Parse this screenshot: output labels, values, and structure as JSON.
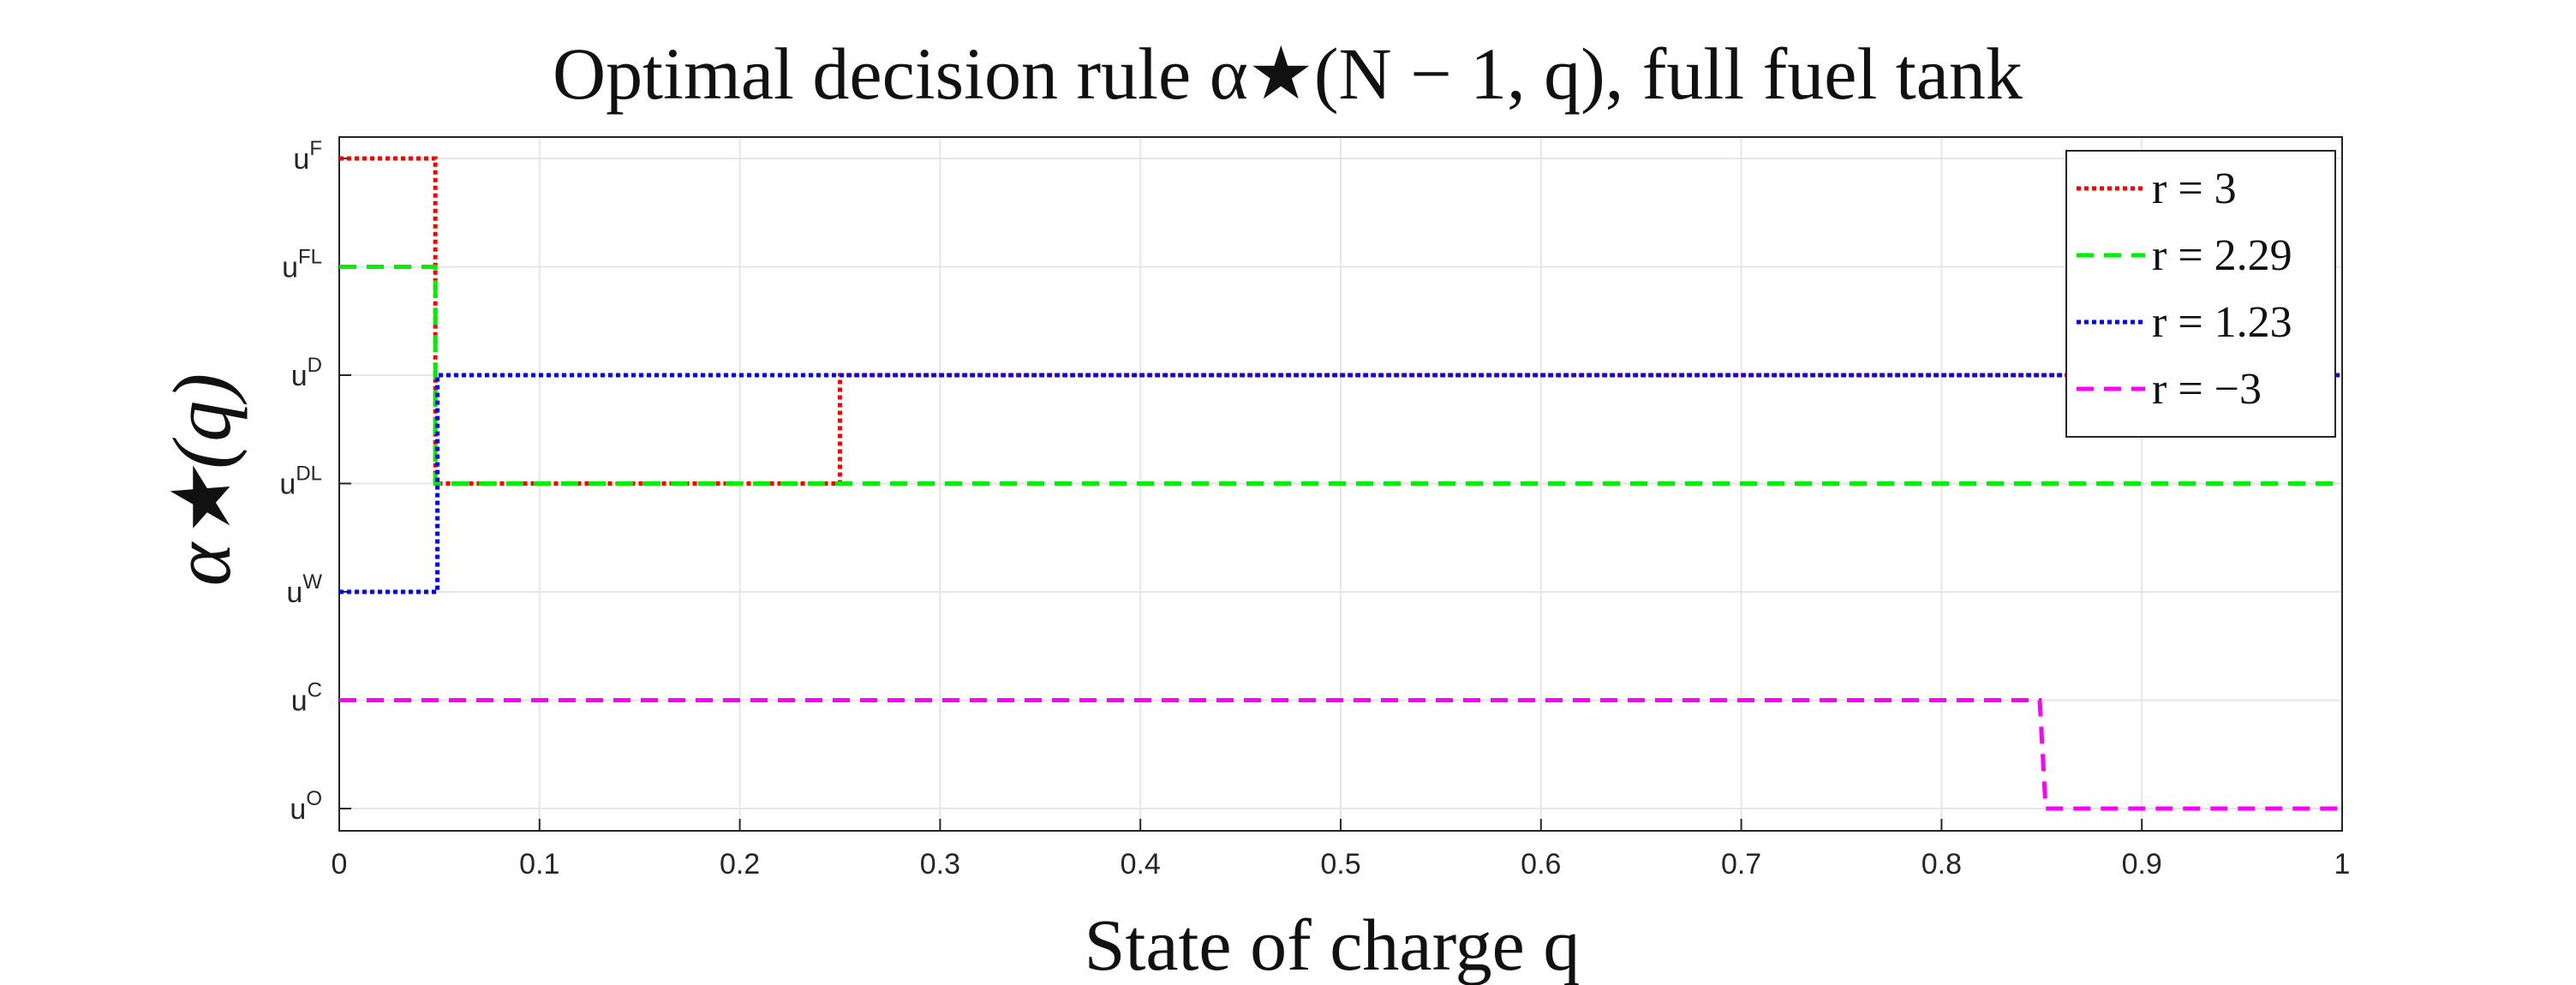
{
  "chart_data": {
    "type": "line",
    "title": "Optimal decision rule α★(N − 1, q), full fuel tank",
    "xlabel": "State of charge  q",
    "ylabel": "α★(q)",
    "xlim": [
      0,
      1
    ],
    "x_ticks": [
      "0",
      "0.1",
      "0.2",
      "0.3",
      "0.4",
      "0.5",
      "0.6",
      "0.7",
      "0.8",
      "0.9",
      "1"
    ],
    "x_tick_values": [
      0,
      0.1,
      0.2,
      0.3,
      0.4,
      0.5,
      0.6,
      0.7,
      0.8,
      0.9,
      1
    ],
    "y_categories": [
      {
        "base": "u",
        "sup": "O"
      },
      {
        "base": "u",
        "sup": "C"
      },
      {
        "base": "u",
        "sup": "W"
      },
      {
        "base": "u",
        "sup": "DL"
      },
      {
        "base": "u",
        "sup": "D"
      },
      {
        "base": "u",
        "sup": "FL"
      },
      {
        "base": "u",
        "sup": "F"
      }
    ],
    "grid": true,
    "legend_position": "top-right",
    "series": [
      {
        "name": "r = 3",
        "color": "#ff0000",
        "style": "dotted",
        "points": [
          [
            0,
            "F"
          ],
          [
            0.048,
            "F"
          ],
          [
            0.048,
            "DL"
          ],
          [
            0.25,
            "DL"
          ],
          [
            0.25,
            "D"
          ],
          [
            1,
            "D"
          ]
        ]
      },
      {
        "name": "r = 2.29",
        "color": "#00ee00",
        "style": "dashed",
        "points": [
          [
            0,
            "FL"
          ],
          [
            0.048,
            "FL"
          ],
          [
            0.048,
            "DL"
          ],
          [
            1,
            "DL"
          ]
        ]
      },
      {
        "name": "r = 1.23",
        "color": "#0000ff",
        "style": "dotted",
        "points": [
          [
            0,
            "W"
          ],
          [
            0.049,
            "W"
          ],
          [
            0.049,
            "D"
          ],
          [
            1,
            "D"
          ]
        ]
      },
      {
        "name": "r = −3",
        "color": "#ff00ff",
        "style": "dashed",
        "points": [
          [
            0,
            "C"
          ],
          [
            0.849,
            "C"
          ],
          [
            0.852,
            "O"
          ],
          [
            1,
            "O"
          ]
        ]
      }
    ]
  }
}
